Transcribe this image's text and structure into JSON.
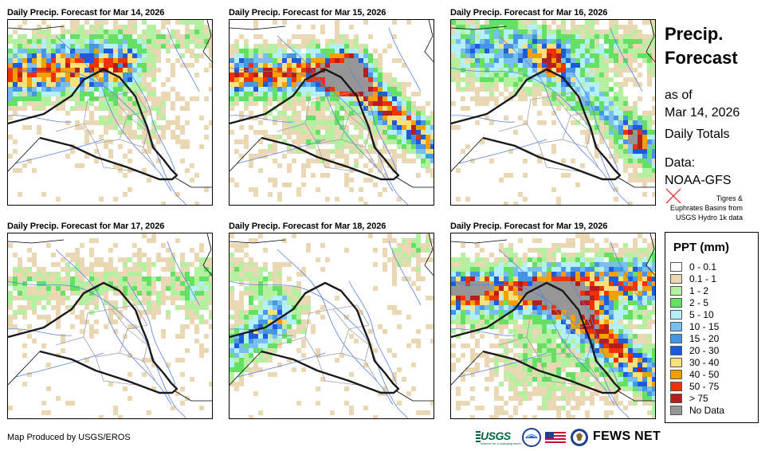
{
  "panels": [
    {
      "title": "Daily Precip. Forecast for Mar 14, 2026"
    },
    {
      "title": "Daily Precip. Forecast for Mar 15, 2026"
    },
    {
      "title": "Daily Precip. Forecast for Mar 16, 2026"
    },
    {
      "title": "Daily Precip. Forecast for Mar 17, 2026"
    },
    {
      "title": "Daily Precip. Forecast for Mar 18, 2026"
    },
    {
      "title": "Daily Precip. Forecast for Mar 19, 2026"
    }
  ],
  "sidebar": {
    "title": "Precip. Forecast",
    "as_of_label": "as of",
    "as_of_date": "Mar 14, 2026",
    "totals_label": "Daily Totals",
    "data_label": "Data:",
    "data_source": "NOAA-GFS",
    "basin_note": "Tigres &\nEuphrates Basins from\nUSGS Hydro 1k data",
    "basin_icon": "red-x-icon"
  },
  "legend": {
    "title": "PPT (mm)",
    "items": [
      {
        "label": "0 - 0.1",
        "color": "#ffffff"
      },
      {
        "label": "0.1 - 1",
        "color": "#ead7b4"
      },
      {
        "label": "1 - 2",
        "color": "#b4f0a0"
      },
      {
        "label": "2 - 5",
        "color": "#64e164"
      },
      {
        "label": "5 - 10",
        "color": "#b4f0f8"
      },
      {
        "label": "10 - 15",
        "color": "#78bef0"
      },
      {
        "label": "15 - 20",
        "color": "#4696e6"
      },
      {
        "label": "20 - 30",
        "color": "#1e5adc"
      },
      {
        "label": "30 - 40",
        "color": "#fae17d"
      },
      {
        "label": "40 - 50",
        "color": "#f5a000"
      },
      {
        "label": "50 - 75",
        "color": "#f03200"
      },
      {
        "label": "> 75",
        "color": "#b41e1e"
      },
      {
        "label": "No Data",
        "color": "#969696"
      }
    ]
  },
  "footer": {
    "credit": "Map Produced by USGS/EROS",
    "usgs": "USGS",
    "usgs_tagline": "science for a changing world",
    "fews": "FEWS NET",
    "logo_icons": [
      "usgs-logo",
      "noaa-logo",
      "us-flag-icon",
      "usaid-seal-icon"
    ]
  }
}
